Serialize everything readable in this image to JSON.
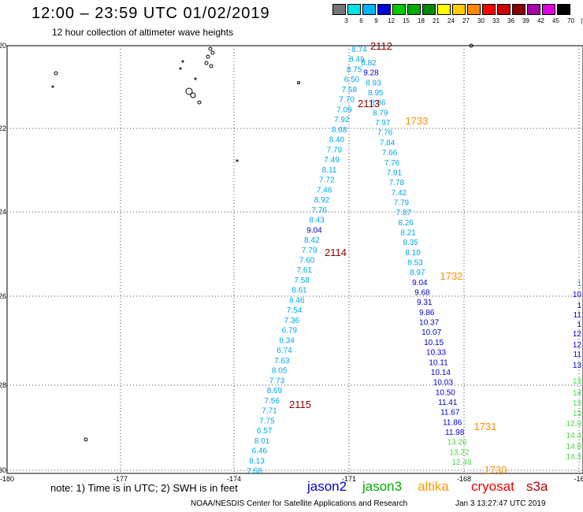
{
  "title": "12:00 – 23:59 UTC 01/02/2019",
  "subtitle": "12 hour collection of altimeter wave heights",
  "legend": {
    "unit": "(ft)",
    "items": [
      {
        "label": "3",
        "color": "#777777"
      },
      {
        "label": "6",
        "color": "#00e5e5"
      },
      {
        "label": "9",
        "color": "#00b3ff"
      },
      {
        "label": "12",
        "color": "#0000dd"
      },
      {
        "label": "15",
        "color": "#00cc00"
      },
      {
        "label": "18",
        "color": "#00aa00"
      },
      {
        "label": "21",
        "color": "#008800"
      },
      {
        "label": "24",
        "color": "#ffff00"
      },
      {
        "label": "27",
        "color": "#ffcc00"
      },
      {
        "label": "30",
        "color": "#ff8800"
      },
      {
        "label": "33",
        "color": "#ff0000"
      },
      {
        "label": "36",
        "color": "#cc0000"
      },
      {
        "label": "39",
        "color": "#880000"
      },
      {
        "label": "42",
        "color": "#aa00aa"
      },
      {
        "label": "45",
        "color": "#dd00dd"
      },
      {
        "label": "70",
        "color": "#000000"
      }
    ]
  },
  "axes": {
    "lat_labels": [
      "-20",
      "-22",
      "-24",
      "-26",
      "-28",
      "-30"
    ],
    "lon_labels": [
      "-180",
      "-177",
      "-174",
      "-171",
      "-168",
      "-16"
    ]
  },
  "tracks": [
    {
      "color": "#00a8e8",
      "values": [
        "8.74",
        "8.49",
        "8.75",
        "6.50",
        "7.68",
        "7.70",
        "7.09",
        "7.92",
        "8.68",
        "8.40",
        "7.79",
        "7.49",
        "8.11",
        "7.72",
        "7.46",
        "8.92",
        "7.76",
        "8.43",
        "9.04",
        "8.42",
        "7.79",
        "7.60",
        "7.61",
        "7.58",
        "8.61",
        "8.46",
        "7.54",
        "7.36",
        "6.79",
        "8.34",
        "6.74",
        "7.63",
        "8.05",
        "7.73",
        "8.69",
        "7.56",
        "7.71",
        "7.75",
        "6.57",
        "8.01",
        "6.46",
        "8.13",
        "7.68"
      ]
    },
    {
      "color": "#00a8e8",
      "values": [
        "8.82",
        "9.28",
        "8.93",
        "8.95",
        "8.86",
        "8.79",
        "7.97",
        "7.76",
        "7.84",
        "7.66",
        "7.76",
        "7.91",
        "7.78",
        "7.42",
        "7.79",
        "7.87",
        "8.26",
        "8.21",
        "8.35",
        "8.10",
        "8.53",
        "8.97",
        "9.04",
        "9.68",
        "9.31",
        "9.86",
        "10.37",
        "10.07",
        "10.15",
        "10.33",
        "10.11",
        "10.14",
        "10.03",
        "10.50",
        "11.41",
        "11.67",
        "11.86",
        "11.98",
        "13.26",
        "13.22",
        "12.48"
      ]
    }
  ],
  "pass_labels": [
    {
      "text": "2112",
      "color": "#880000"
    },
    {
      "text": "2113",
      "color": "#880000"
    },
    {
      "text": "2114",
      "color": "#880000"
    },
    {
      "text": "2115",
      "color": "#880000"
    },
    {
      "text": "1733",
      "color": "#ff8c00"
    },
    {
      "text": "1732",
      "color": "#ff8c00"
    },
    {
      "text": "1731",
      "color": "#ff8c00"
    },
    {
      "text": "1730",
      "color": "#ff8c00"
    }
  ],
  "edge_values": [
    "10",
    "1",
    "11",
    "1",
    "12",
    "12",
    "11",
    "13",
    "13",
    "14",
    "13",
    "13",
    "12.9",
    "14.4",
    "14.8",
    "14.3"
  ],
  "edge_marker": "1",
  "note": "note:  1) Time is in UTC;  2) SWH is in feet",
  "satellites": [
    {
      "name": "jason2",
      "color": "#0000cc"
    },
    {
      "name": "jason3",
      "color": "#00aa00"
    },
    {
      "name": "altika",
      "color": "#ff9900"
    },
    {
      "name": "cryosat",
      "color": "#ee0000"
    },
    {
      "name": "s3a",
      "color": "#aa0000"
    }
  ],
  "credit": "NOAA/NESDIS Center for Satellite Applications and Research",
  "timestamp": "Jan  3 13:27:47 UTC 2019"
}
